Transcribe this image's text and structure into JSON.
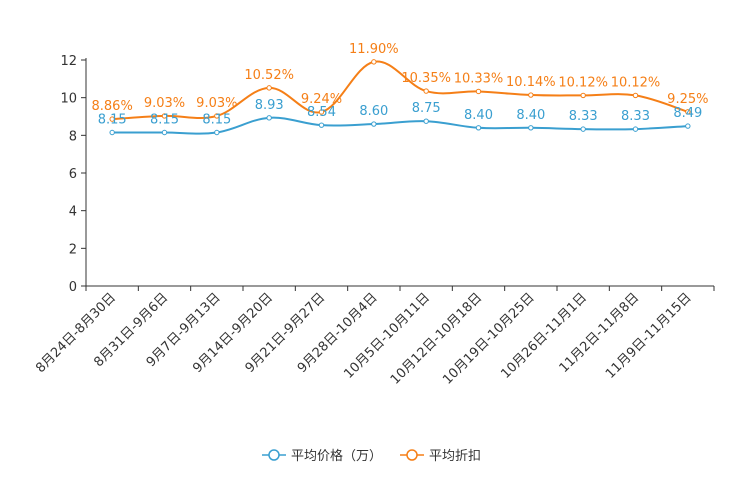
{
  "chart_data": {
    "type": "line",
    "categories": [
      "8月24日-8月30日",
      "8月31日-9月6日",
      "9月7日-9月13日",
      "9月14日-9月20日",
      "9月21日-9月27日",
      "9月28日-10月4日",
      "10月5日-10月11日",
      "10月12日-10月18日",
      "10月19日-10月25日",
      "10月26日-11月1日",
      "11月2日-11月8日",
      "11月9日-11月15日"
    ],
    "ylim": [
      0,
      12
    ],
    "yticks": [
      0,
      2,
      4,
      6,
      8,
      10,
      12
    ],
    "series": [
      {
        "name": "平均价格（万）",
        "color": "#3a9fd0",
        "values": [
          8.15,
          8.15,
          8.15,
          8.93,
          8.54,
          8.6,
          8.75,
          8.4,
          8.4,
          8.33,
          8.33,
          8.49
        ],
        "labels": [
          "8.15",
          "8.15",
          "8.15",
          "8.93",
          "8.54",
          "8.60",
          "8.75",
          "8.40",
          "8.40",
          "8.33",
          "8.33",
          "8.49"
        ]
      },
      {
        "name": "平均折扣",
        "color": "#f57f17",
        "values": [
          8.86,
          9.03,
          9.03,
          10.52,
          9.24,
          11.9,
          10.35,
          10.33,
          10.14,
          10.12,
          10.12,
          9.25
        ],
        "labels": [
          "8.86%",
          "9.03%",
          "9.03%",
          "10.52%",
          "9.24%",
          "11.90%",
          "10.35%",
          "10.33%",
          "10.14%",
          "10.12%",
          "10.12%",
          "9.25%"
        ]
      }
    ],
    "legend_position": "bottom-center"
  }
}
